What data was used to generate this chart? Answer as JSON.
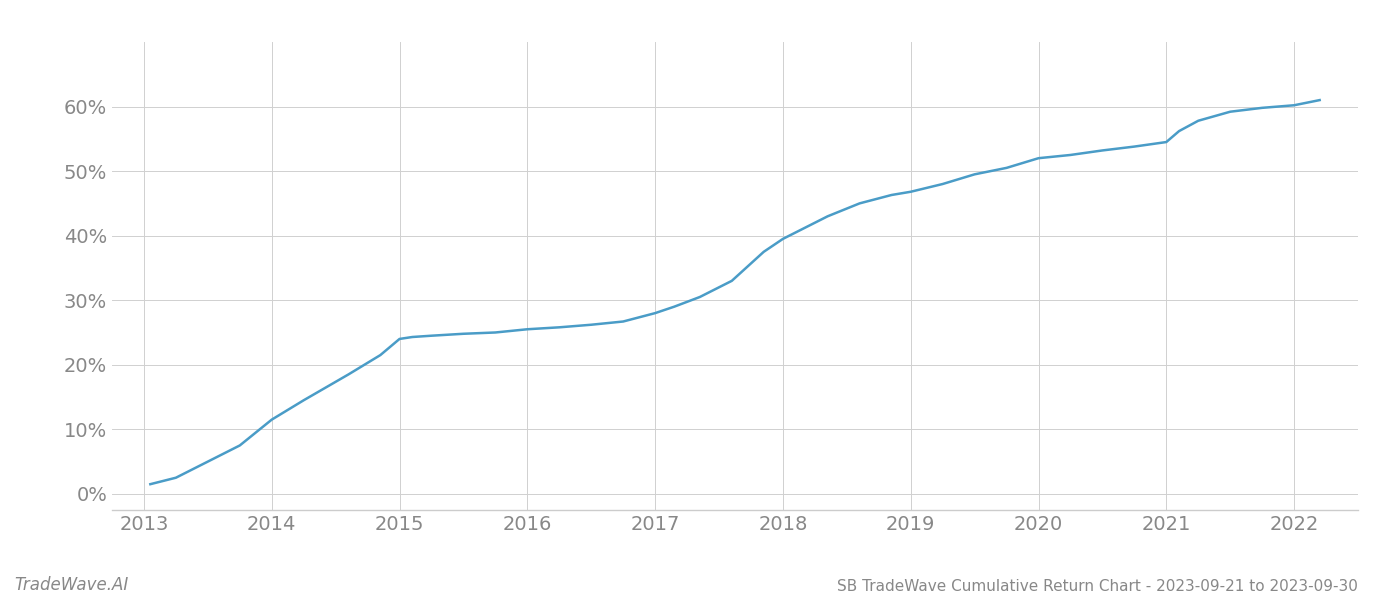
{
  "x": [
    2013.05,
    2013.25,
    2013.5,
    2013.75,
    2014.0,
    2014.25,
    2014.6,
    2014.85,
    2015.0,
    2015.1,
    2015.25,
    2015.5,
    2015.75,
    2016.0,
    2016.25,
    2016.5,
    2016.75,
    2017.0,
    2017.15,
    2017.35,
    2017.6,
    2017.85,
    2018.0,
    2018.15,
    2018.35,
    2018.6,
    2018.85,
    2019.0,
    2019.25,
    2019.5,
    2019.75,
    2020.0,
    2020.25,
    2020.5,
    2020.75,
    2021.0,
    2021.1,
    2021.25,
    2021.5,
    2021.75,
    2022.0,
    2022.2
  ],
  "y": [
    0.015,
    0.025,
    0.05,
    0.075,
    0.115,
    0.145,
    0.185,
    0.215,
    0.24,
    0.243,
    0.245,
    0.248,
    0.25,
    0.255,
    0.258,
    0.262,
    0.267,
    0.28,
    0.29,
    0.305,
    0.33,
    0.375,
    0.395,
    0.41,
    0.43,
    0.45,
    0.463,
    0.468,
    0.48,
    0.495,
    0.505,
    0.52,
    0.525,
    0.532,
    0.538,
    0.545,
    0.562,
    0.578,
    0.592,
    0.598,
    0.602,
    0.61
  ],
  "line_color": "#4a9cc7",
  "line_width": 1.8,
  "bg_color": "#ffffff",
  "grid_color": "#d0d0d0",
  "title": "SB TradeWave Cumulative Return Chart - 2023-09-21 to 2023-09-30",
  "watermark": "TradeWave.AI",
  "xlim": [
    2012.75,
    2022.5
  ],
  "ylim": [
    -0.025,
    0.7
  ],
  "yticks": [
    0.0,
    0.1,
    0.2,
    0.3,
    0.4,
    0.5,
    0.6
  ],
  "ytick_labels": [
    "0%",
    "10%",
    "20%",
    "30%",
    "40%",
    "50%",
    "60%"
  ],
  "xticks": [
    2013,
    2014,
    2015,
    2016,
    2017,
    2018,
    2019,
    2020,
    2021,
    2022
  ],
  "xtick_labels": [
    "2013",
    "2014",
    "2015",
    "2016",
    "2017",
    "2018",
    "2019",
    "2020",
    "2021",
    "2022"
  ],
  "tick_color": "#888888",
  "label_fontsize": 14,
  "title_fontsize": 11,
  "watermark_fontsize": 12
}
